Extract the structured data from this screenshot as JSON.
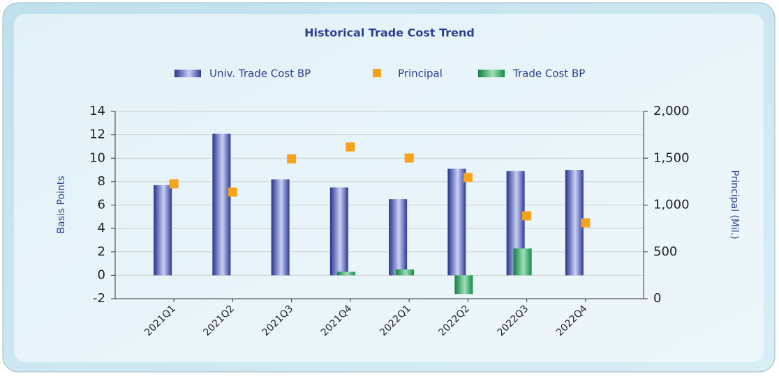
{
  "chart_data": {
    "type": "bar",
    "title": "Historical Trade Cost Trend",
    "categories": [
      "2021Q1",
      "2021Q2",
      "2021Q3",
      "2021Q4",
      "2022Q1",
      "2022Q2",
      "2022Q3",
      "2022Q4"
    ],
    "series": [
      {
        "name": "Univ. Trade Cost BP",
        "type": "bar",
        "color": "#3545a8",
        "values": [
          7.7,
          12.1,
          8.2,
          7.5,
          6.5,
          9.1,
          8.9,
          9.0
        ]
      },
      {
        "name": "Principal",
        "type": "scatter",
        "axis": "y2",
        "color": "#f7a21b",
        "values": [
          1227,
          1138,
          1494,
          1621,
          1502,
          1294,
          885,
          810
        ]
      },
      {
        "name": "Trade Cost BP",
        "type": "bar",
        "color": "#24a05a",
        "values": [
          null,
          null,
          null,
          0.3,
          0.5,
          -1.6,
          2.3,
          null
        ]
      }
    ],
    "ylabel": "Basis Points",
    "y2label": "Principal (Mil.)",
    "ylim": [
      -2,
      14
    ],
    "yticks": [
      -2,
      0,
      2,
      4,
      6,
      8,
      10,
      12,
      14
    ],
    "y2lim": [
      0,
      2000
    ],
    "y2ticks": [
      0,
      500,
      {
        "value": 1000,
        "label": "1,000"
      },
      {
        "value": 1500,
        "label": "1,500"
      },
      {
        "value": 2000,
        "label": "2,000"
      }
    ],
    "grid": true
  }
}
